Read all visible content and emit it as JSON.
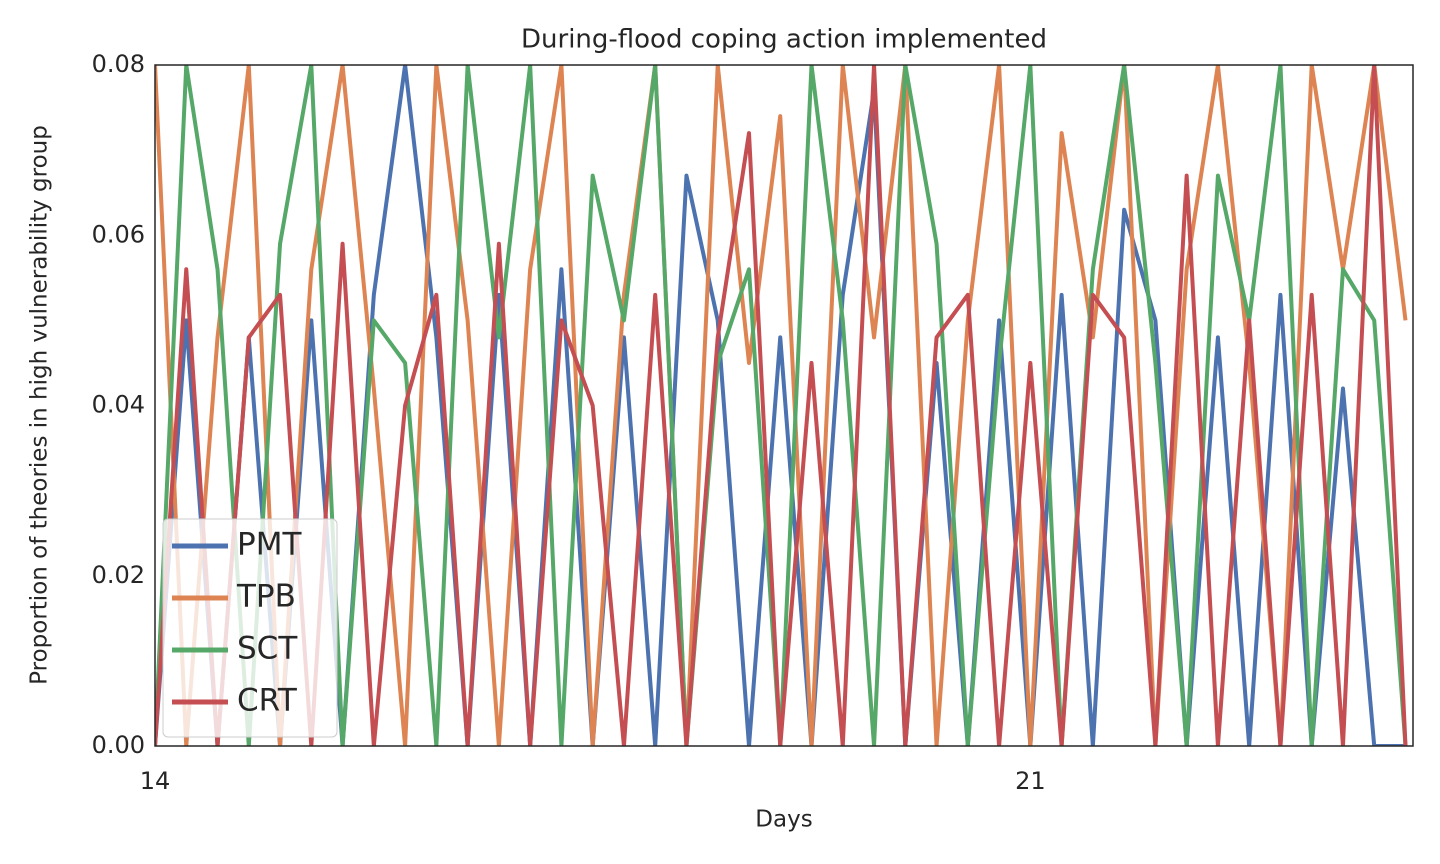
{
  "chart_data": {
    "type": "line",
    "title": "During-flood coping action implemented",
    "x_label": "Days",
    "y_label": "Proportion of theories in high vulnerability group",
    "x": [
      14,
      14.25,
      14.5,
      14.75,
      15,
      15.25,
      15.5,
      15.75,
      16,
      16.25,
      16.5,
      16.75,
      17,
      17.25,
      17.5,
      17.75,
      18,
      18.25,
      18.5,
      18.75,
      19,
      19.25,
      19.5,
      19.75,
      20,
      20.25,
      20.5,
      20.75,
      21,
      21.25,
      21.5,
      21.75,
      22,
      22.25,
      22.5,
      22.75,
      23,
      23.25,
      23.5,
      23.75,
      24
    ],
    "series": [
      {
        "name": "PMT",
        "color": "#4c72b0",
        "values": [
          0,
          0.05,
          0,
          0.048,
          0,
          0.05,
          0,
          0.053,
          0.08,
          0.048,
          0,
          0.053,
          0,
          0.056,
          0,
          0.048,
          0,
          0.067,
          0.05,
          0,
          0.048,
          0,
          0.053,
          0.077,
          0,
          0.045,
          0,
          0.05,
          0,
          0.053,
          0,
          0.063,
          0.05,
          0,
          0.048,
          0,
          0.053,
          0,
          0.042,
          0,
          0
        ]
      },
      {
        "name": "TPB",
        "color": "#dd8452",
        "values": [
          0.08,
          0,
          0.048,
          0.08,
          0,
          0.056,
          0.08,
          0.042,
          0,
          0.08,
          0.05,
          0,
          0.056,
          0.08,
          0,
          0.053,
          0.08,
          0,
          0.08,
          0.045,
          0.074,
          0,
          0.08,
          0.048,
          0.08,
          0,
          0.05,
          0.08,
          0,
          0.072,
          0.048,
          0.08,
          0,
          0.056,
          0.08,
          0.045,
          0,
          0.08,
          0.056,
          0.08,
          0.05
        ]
      },
      {
        "name": "SCT",
        "color": "#55a868",
        "values": [
          0,
          0.08,
          0.056,
          0,
          0.059,
          0.08,
          0,
          0.05,
          0.045,
          0,
          0.08,
          0.048,
          0.08,
          0,
          0.067,
          0.05,
          0.08,
          0,
          0.045,
          0.056,
          0,
          0.08,
          0.05,
          0,
          0.08,
          0.059,
          0,
          0.045,
          0.08,
          0,
          0.056,
          0.08,
          0.045,
          0,
          0.067,
          0.05,
          0.08,
          0,
          0.056,
          0.05,
          0
        ]
      },
      {
        "name": "CRT",
        "color": "#c44e52",
        "values": [
          0,
          0.056,
          0,
          0.048,
          0.053,
          0,
          0.059,
          0,
          0.04,
          0.053,
          0,
          0.059,
          0,
          0.05,
          0.04,
          0,
          0.053,
          0,
          0.048,
          0.072,
          0,
          0.045,
          0,
          0.08,
          0,
          0.048,
          0.053,
          0,
          0.045,
          0,
          0.053,
          0.048,
          0,
          0.067,
          0,
          0.05,
          0,
          0.053,
          0,
          0.08,
          0
        ]
      }
    ],
    "xlim": [
      14,
      24.06
    ],
    "ylim": [
      0,
      0.08
    ],
    "xticks": [
      14,
      21
    ],
    "yticks": [
      {
        "value": 0,
        "label": "0.00"
      },
      0.02,
      0.04,
      0.06,
      0.08
    ],
    "grid": false,
    "legend": "lower left"
  }
}
